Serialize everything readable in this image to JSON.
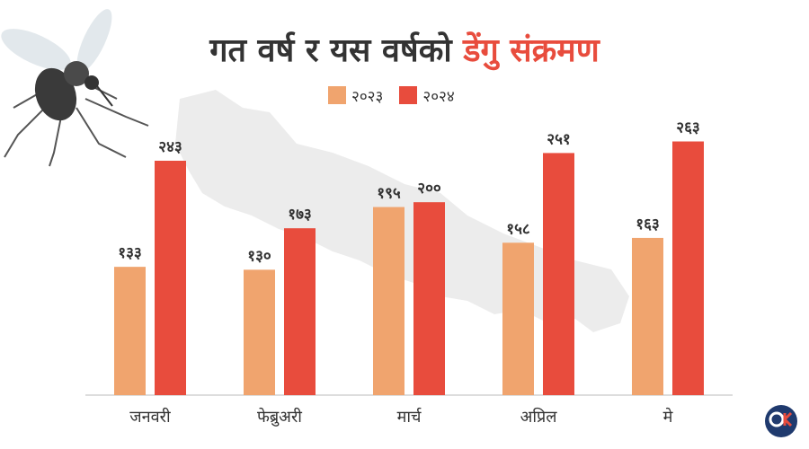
{
  "title_main": "गत वर्ष र यस वर्षको ",
  "title_highlight": "डेंगु संक्रमण",
  "colors": {
    "s2023": "#f0a46e",
    "s2024": "#e84c3d",
    "axis": "#bbbbbb",
    "map": "#e6e6e6",
    "label": "#333333"
  },
  "chart_data": {
    "type": "bar",
    "title": "गत वर्ष र यस वर्षको डेंगु संक्रमण",
    "categories": [
      "जनवरी",
      "फेब्रुअरी",
      "मार्च",
      "अप्रिल",
      "मे"
    ],
    "series": [
      {
        "name": "२०२३",
        "values": [
          133,
          130,
          195,
          158,
          163
        ],
        "labels": [
          "१३३",
          "१३०",
          "१९५",
          "१५८",
          "१६३"
        ]
      },
      {
        "name": "२०२४",
        "values": [
          243,
          173,
          200,
          251,
          263
        ],
        "labels": [
          "२४३",
          "१७३",
          "२००",
          "२५१",
          "२६३"
        ]
      }
    ],
    "ylim": [
      0,
      270
    ],
    "grid": false,
    "legend": "top-center"
  },
  "icons": {
    "mosquito": "mosquito-icon",
    "logo": "onlinekhabar-logo-icon"
  }
}
